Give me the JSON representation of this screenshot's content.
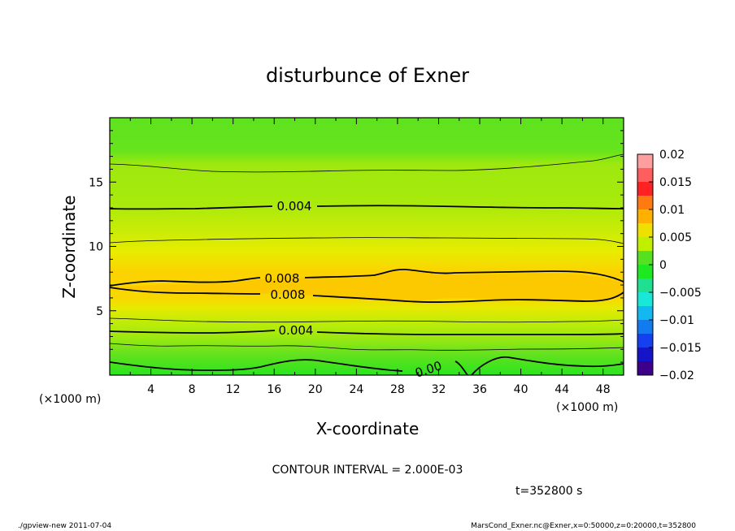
{
  "chart_data": {
    "type": "contour",
    "title": "disturbunce of Exner",
    "xlabel": "X-coordinate",
    "ylabel": "Z-coordinate",
    "x_unit": "(×1000 m)",
    "y_unit": "(×1000 m)",
    "xlim": [
      0,
      50
    ],
    "ylim": [
      0,
      20
    ],
    "x_ticks": [
      4,
      8,
      12,
      16,
      20,
      24,
      28,
      32,
      36,
      40,
      44,
      48
    ],
    "y_ticks": [
      5,
      10,
      15
    ],
    "colorbar": {
      "min": -0.02,
      "max": 0.02,
      "ticks": [
        "0.02",
        "0.015",
        "0.01",
        "0.005",
        "0",
        "−0.005",
        "−0.01",
        "−0.015",
        "−0.02"
      ],
      "colors": [
        "#ff9e9e",
        "#ff5e5e",
        "#ff2222",
        "#ff7a10",
        "#ffb000",
        "#f0e000",
        "#c0ef00",
        "#55e11f",
        "#1ee81f",
        "#1ee090",
        "#18e8d8",
        "#14b8f0",
        "#147af0",
        "#1440f0",
        "#1414c8",
        "#3c008a"
      ]
    },
    "contour_interval": "CONTOUR INTERVAL = 2.000E-03",
    "contours": [
      {
        "level": 0.002,
        "z_km": 16.5,
        "style": "thin"
      },
      {
        "level": 0.004,
        "z_km": 13.0,
        "style": "thick",
        "label": "0.004"
      },
      {
        "level": 0.006,
        "z_km": 10.7,
        "style": "thin"
      },
      {
        "level": 0.008,
        "z_km": 7.3,
        "style": "thick",
        "label": "0.008",
        "note": "upper edge of max region"
      },
      {
        "level": 0.008,
        "z_km": 6.2,
        "style": "thick",
        "label": "0.008",
        "note": "lower edge of max region"
      },
      {
        "level": 0.006,
        "z_km": 4.2,
        "style": "thin"
      },
      {
        "level": 0.004,
        "z_km": 3.2,
        "style": "thick",
        "label": "0.004"
      },
      {
        "level": 0.002,
        "z_km": 2.0,
        "style": "thin"
      },
      {
        "level": 0.0,
        "z_km": 0.6,
        "style": "thick",
        "label": "0.00"
      }
    ],
    "time_label": "t=352800 s",
    "footer_left": "./gpview-new   2011-07-04",
    "footer_right": "MarsCond_Exner.nc@Exner,x=0:50000,z=0:20000,t=352800"
  }
}
